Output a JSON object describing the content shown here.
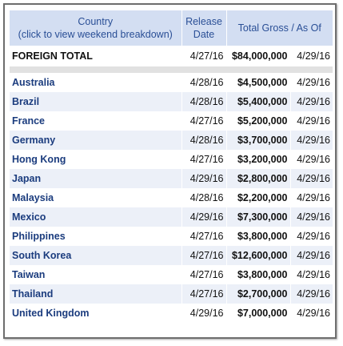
{
  "header": {
    "country_line1": "Country",
    "country_line2": "(click to view weekend breakdown)",
    "release_line1": "Release",
    "release_line2": "Date",
    "gross": "Total Gross / As Of"
  },
  "total": {
    "country": "FOREIGN TOTAL",
    "date": "4/27/16",
    "gross": "$84,000,000",
    "asof": "4/29/16"
  },
  "rows": [
    {
      "country": "Australia",
      "date": "4/28/16",
      "gross": "$4,500,000",
      "asof": "4/29/16"
    },
    {
      "country": "Brazil",
      "date": "4/28/16",
      "gross": "$5,400,000",
      "asof": "4/29/16"
    },
    {
      "country": "France",
      "date": "4/27/16",
      "gross": "$5,200,000",
      "asof": "4/29/16"
    },
    {
      "country": "Germany",
      "date": "4/28/16",
      "gross": "$3,700,000",
      "asof": "4/29/16"
    },
    {
      "country": "Hong Kong",
      "date": "4/27/16",
      "gross": "$3,200,000",
      "asof": "4/29/16"
    },
    {
      "country": "Japan",
      "date": "4/29/16",
      "gross": "$2,800,000",
      "asof": "4/29/16"
    },
    {
      "country": "Malaysia",
      "date": "4/28/16",
      "gross": "$2,200,000",
      "asof": "4/29/16"
    },
    {
      "country": "Mexico",
      "date": "4/29/16",
      "gross": "$7,300,000",
      "asof": "4/29/16"
    },
    {
      "country": "Philippines",
      "date": "4/27/16",
      "gross": "$3,800,000",
      "asof": "4/29/16"
    },
    {
      "country": "South Korea",
      "date": "4/27/16",
      "gross": "$12,600,000",
      "asof": "4/29/16"
    },
    {
      "country": "Taiwan",
      "date": "4/27/16",
      "gross": "$3,800,000",
      "asof": "4/29/16"
    },
    {
      "country": "Thailand",
      "date": "4/27/16",
      "gross": "$2,700,000",
      "asof": "4/29/16"
    },
    {
      "country": "United Kingdom",
      "date": "4/29/16",
      "gross": "$7,000,000",
      "asof": "4/29/16"
    }
  ]
}
